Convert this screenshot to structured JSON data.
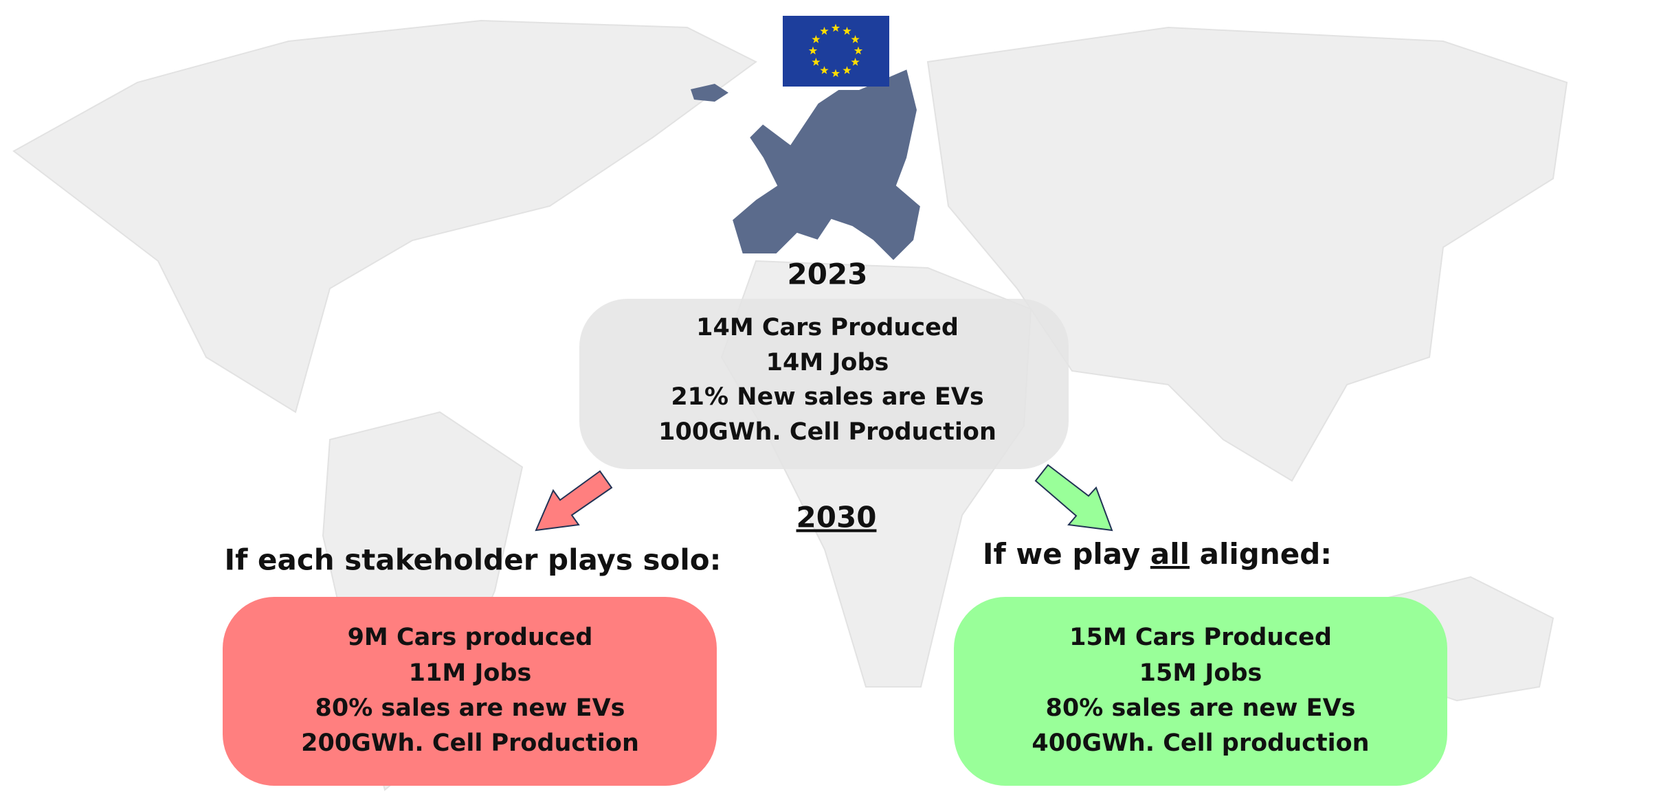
{
  "top_year": "2023",
  "current": {
    "lines": [
      "14M Cars Produced",
      "14M Jobs",
      "21% New sales are EVs",
      "100GWh. Cell Production"
    ]
  },
  "future_year": "2030",
  "solo": {
    "heading": "If each stakeholder plays solo:",
    "lines": [
      "9M Cars produced",
      "11M Jobs",
      "80% sales are new EVs",
      "200GWh. Cell Production"
    ]
  },
  "aligned": {
    "heading_parts": [
      "If we play ",
      "all",
      " aligned:"
    ],
    "lines": [
      "15M Cars Produced",
      "15M Jobs",
      "80% sales are new EVs",
      "400GWh. Cell production"
    ]
  }
}
